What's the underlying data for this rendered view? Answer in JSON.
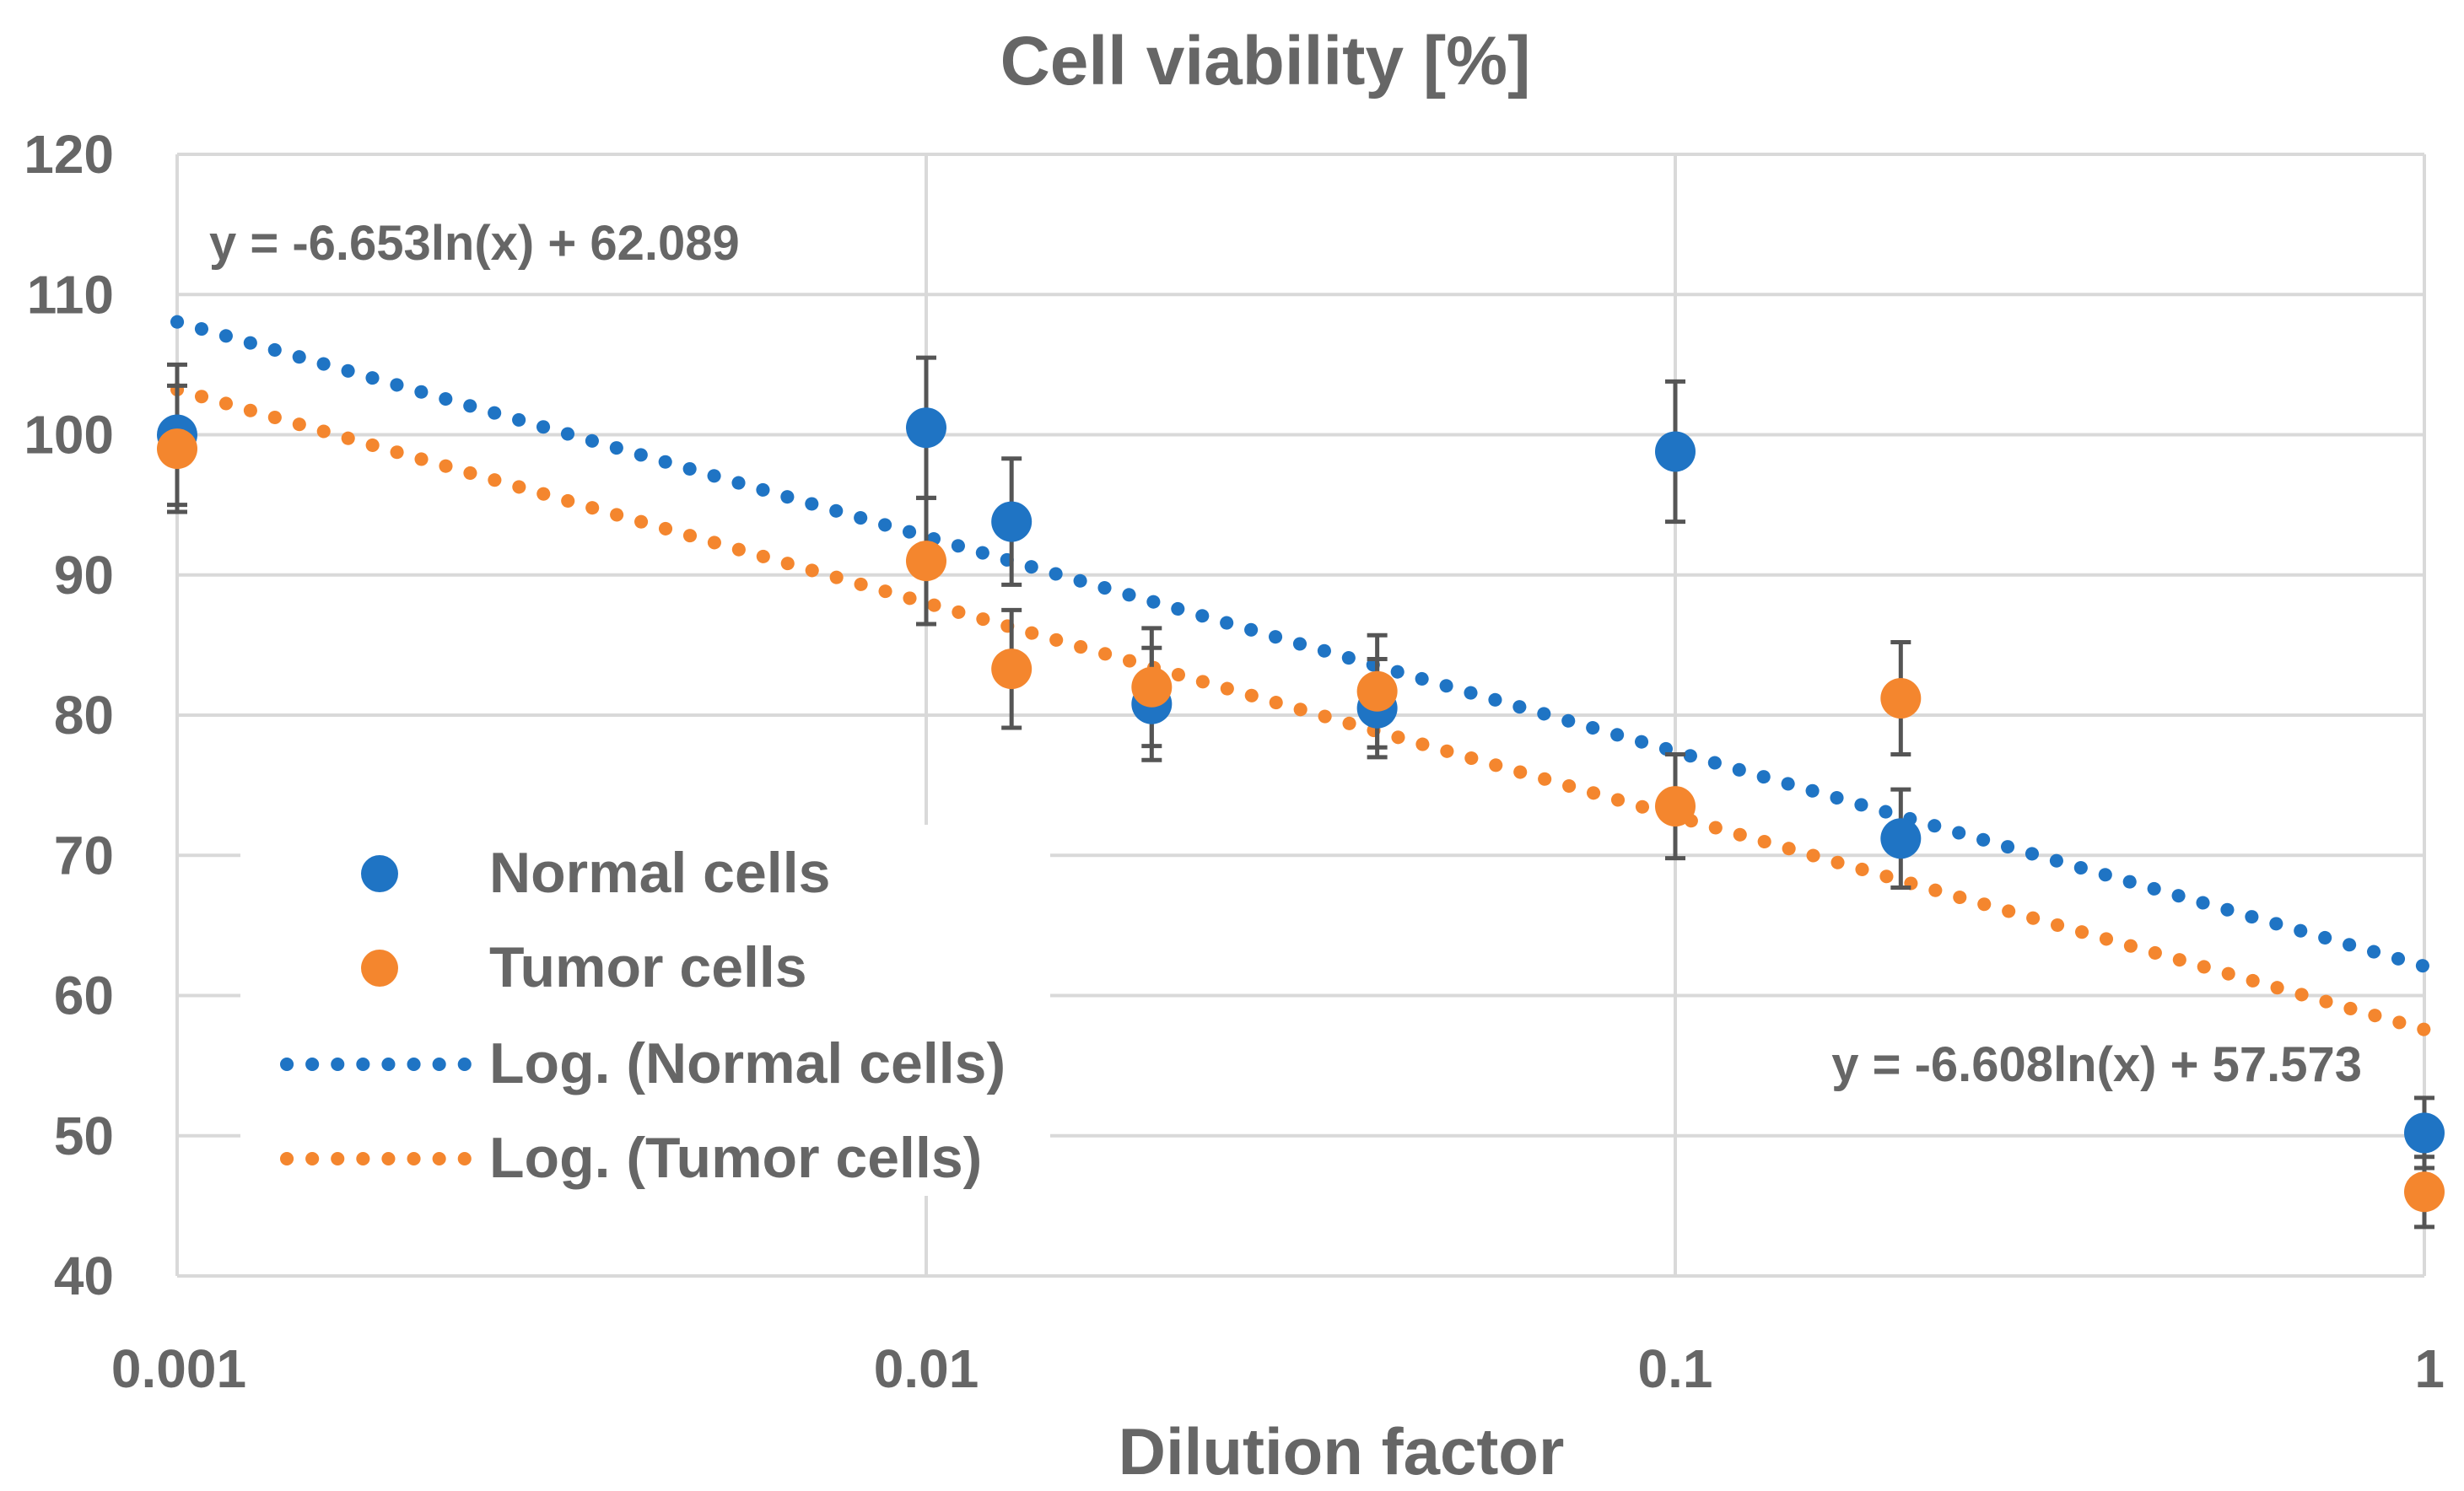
{
  "chart_data": {
    "type": "scatter",
    "title": "Cell viability [%]",
    "xlabel": "Dilution factor",
    "ylabel": "",
    "xscale": "log",
    "xlim": [
      0.001,
      1
    ],
    "ylim": [
      40,
      120
    ],
    "xticks": [
      {
        "value": 0.001,
        "label": "0.001"
      },
      {
        "value": 0.01,
        "label": "0.01"
      },
      {
        "value": 0.1,
        "label": "0.1"
      },
      {
        "value": 1,
        "label": "1"
      }
    ],
    "yticks": [
      {
        "value": 40,
        "label": "40"
      },
      {
        "value": 50,
        "label": "50"
      },
      {
        "value": 60,
        "label": "60"
      },
      {
        "value": 70,
        "label": "70"
      },
      {
        "value": 80,
        "label": "80"
      },
      {
        "value": 90,
        "label": "90"
      },
      {
        "value": 100,
        "label": "100"
      },
      {
        "value": 110,
        "label": "110"
      },
      {
        "value": 120,
        "label": "120"
      }
    ],
    "grid": true,
    "legend_position": "left-bottom",
    "series": [
      {
        "name": "Normal cells",
        "color": "#1f74c4",
        "x": [
          0.001,
          0.01,
          0.013,
          0.02,
          0.04,
          0.1,
          0.2,
          1
        ],
        "y": [
          100,
          100.5,
          93.8,
          80.8,
          80.5,
          98.8,
          71.2,
          50.2
        ],
        "error": [
          5,
          5,
          4.5,
          4,
          3.5,
          5,
          3.5,
          2.5
        ]
      },
      {
        "name": "Tumor cells",
        "color": "#f4862e",
        "x": [
          0.001,
          0.01,
          0.013,
          0.02,
          0.04,
          0.1,
          0.2,
          1
        ],
        "y": [
          99,
          91,
          83.3,
          82,
          81.7,
          73.5,
          81.2,
          46
        ],
        "error": [
          4.5,
          4.5,
          4.2,
          4.2,
          4,
          3.7,
          4,
          2.5
        ]
      }
    ],
    "trendlines": [
      {
        "name": "Log. (Normal cells)",
        "color": "#1f74c4",
        "a": -6.653,
        "b": 62.089,
        "equation": "y = -6.653ln(x) + 62.089",
        "equation_position": "top-left"
      },
      {
        "name": "Log. (Tumor cells)",
        "color": "#f4862e",
        "a": -6.608,
        "b": 57.573,
        "equation": "y = -6.608ln(x) + 57.573",
        "equation_position": "bottom-right"
      }
    ]
  }
}
